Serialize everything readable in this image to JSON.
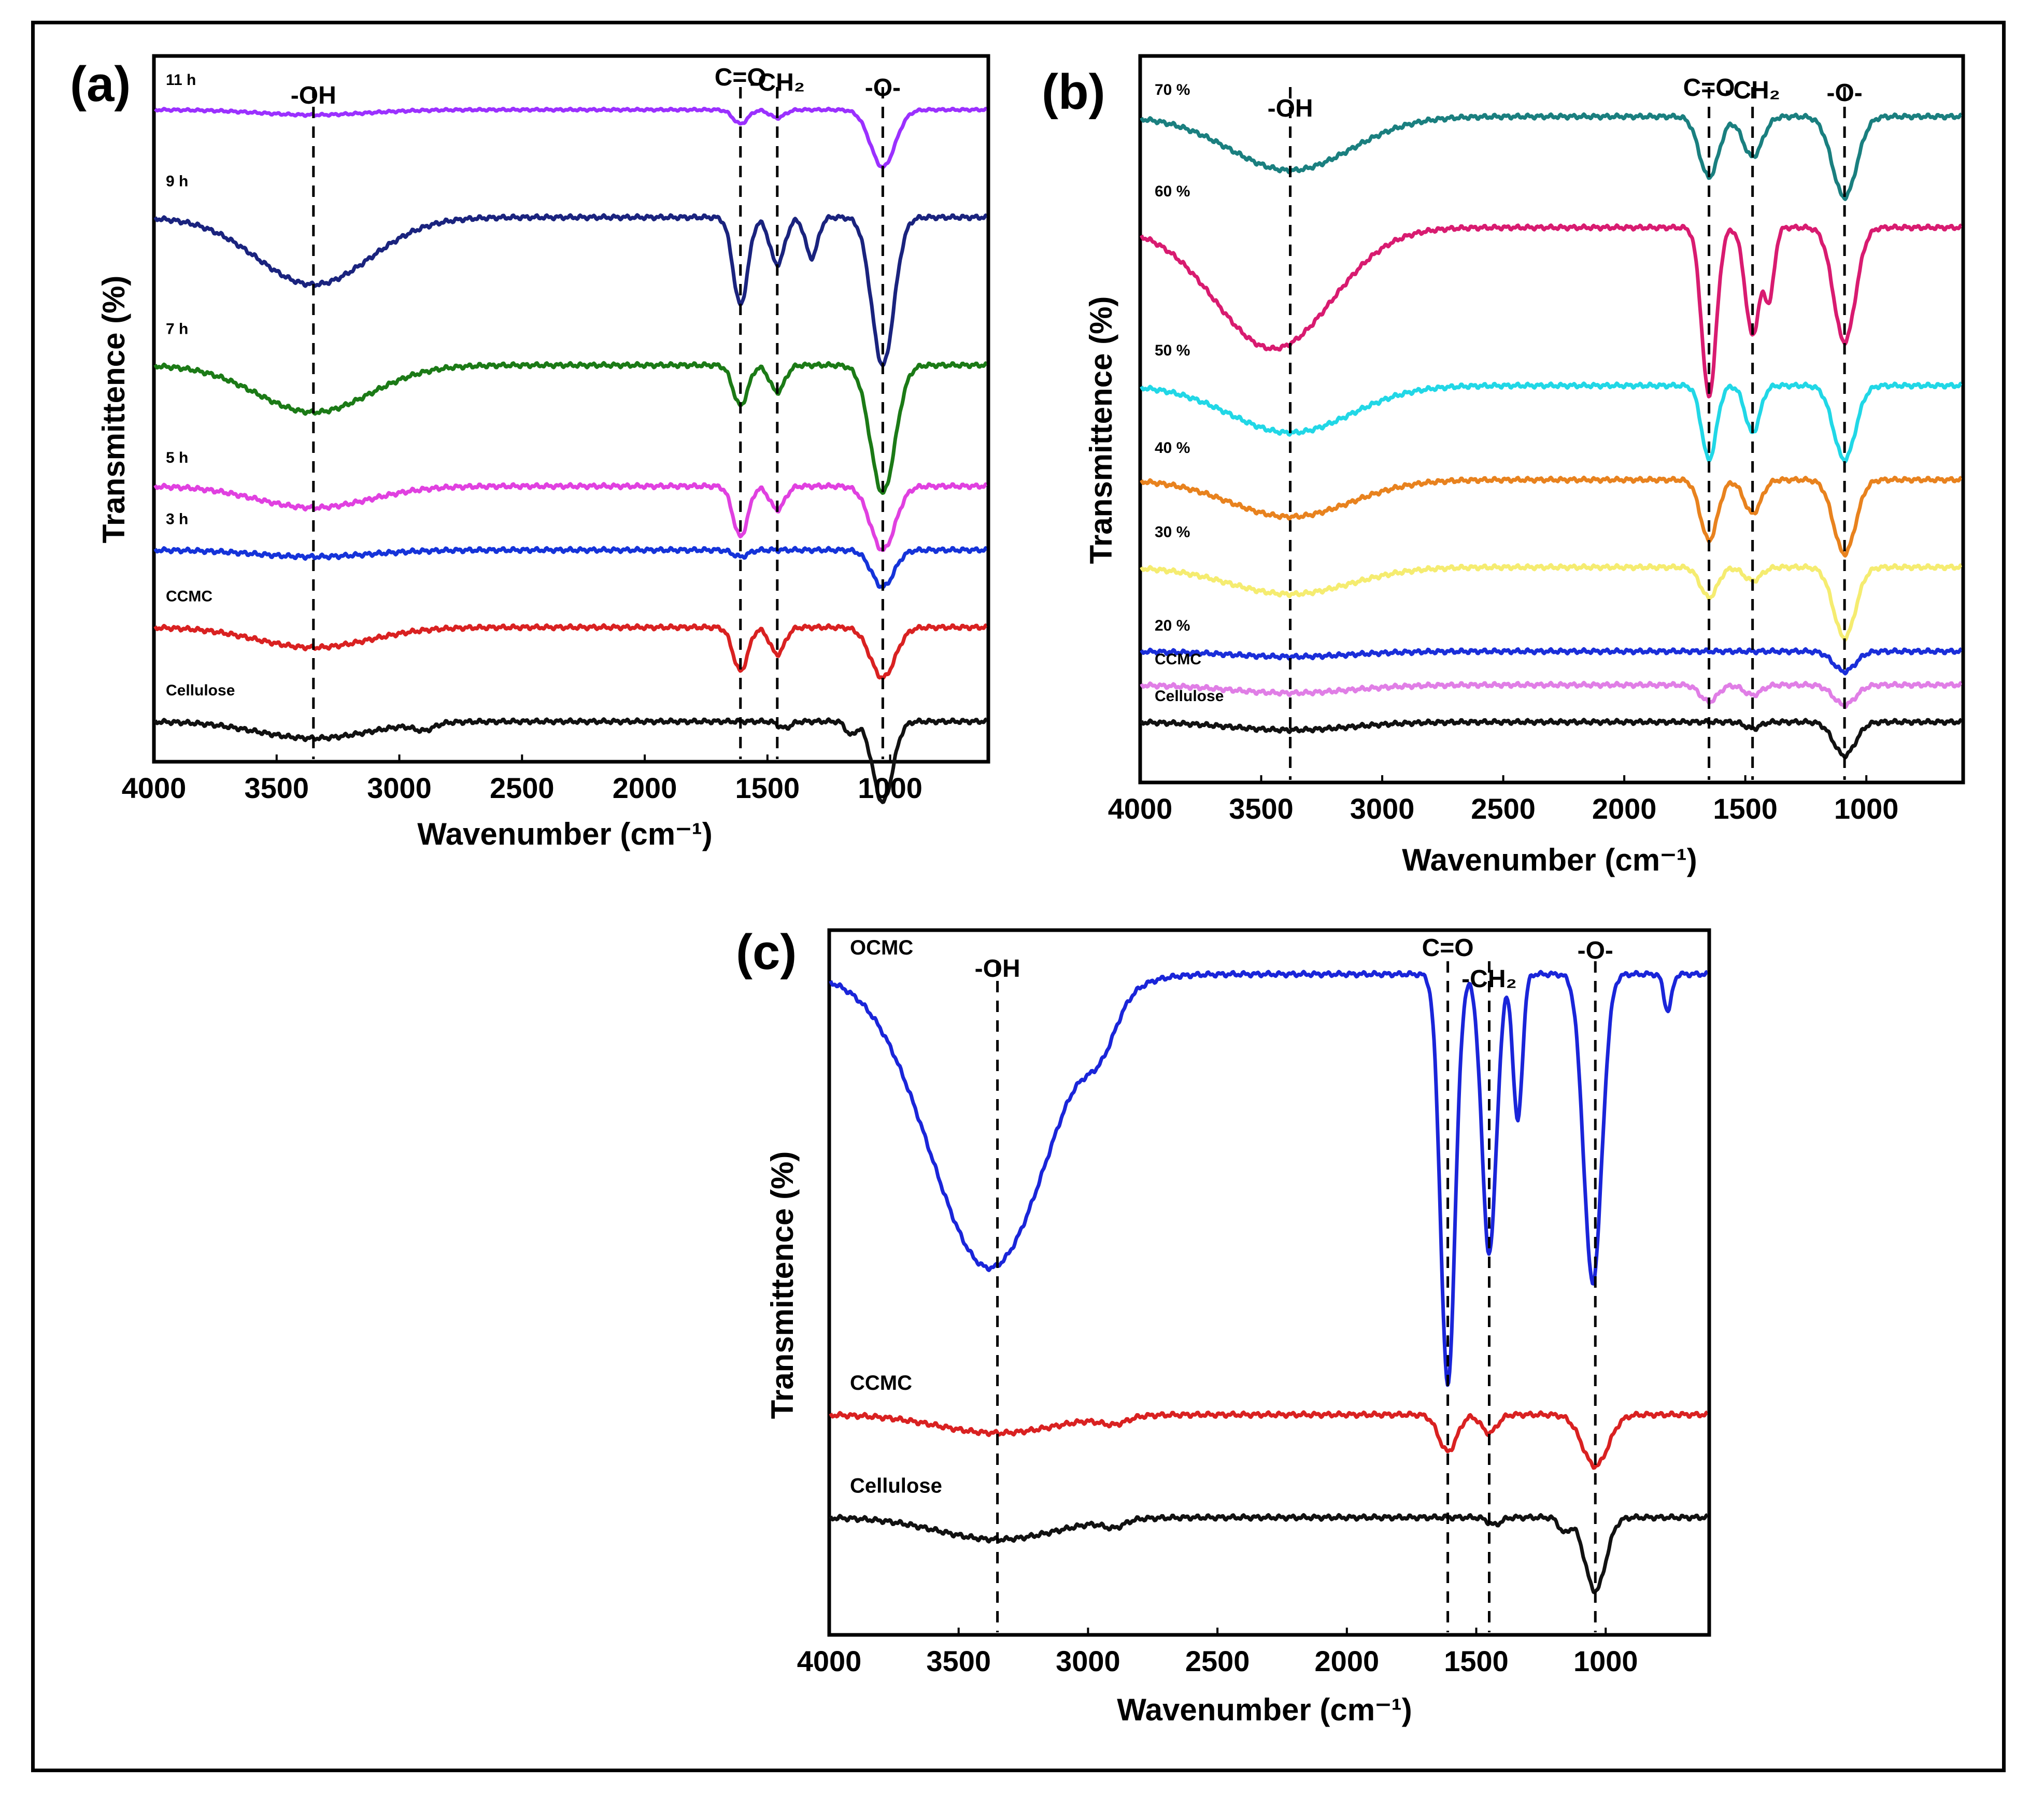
{
  "chart_data": [
    {
      "panel": "(a)",
      "type": "line",
      "xlabel": "Wavenumber (cm⁻¹)",
      "ylabel": "Transmittence (%)",
      "xlim": [
        4000,
        600
      ],
      "xticks": [
        4000,
        3500,
        3000,
        2500,
        2000,
        1500,
        1000
      ],
      "bands": [
        {
          "label": "-OH",
          "x": 3350
        },
        {
          "label": "C=O",
          "x": 1610
        },
        {
          "label": "-CH₂",
          "x": 1460
        },
        {
          "label": "-O-",
          "x": 1030
        }
      ],
      "series": [
        {
          "name": "11 h",
          "color": "#9b30ff",
          "offset": 9.7,
          "scale": 0.55,
          "peaks": [
            [
              3350,
              0.14,
              220
            ],
            [
              1610,
              0.38,
              30
            ],
            [
              1460,
              0.22,
              30
            ],
            [
              1030,
              1.55,
              50
            ]
          ]
        },
        {
          "name": "9 h",
          "color": "#1a237e",
          "offset": 8.1,
          "scale": 1,
          "peaks": [
            [
              3350,
              1.0,
              230
            ],
            [
              1610,
              1.3,
              30
            ],
            [
              1460,
              0.7,
              30
            ],
            [
              1320,
              0.6,
              25
            ],
            [
              1030,
              2.2,
              45
            ]
          ]
        },
        {
          "name": "7 h",
          "color": "#1b7a16",
          "offset": 5.9,
          "scale": 1,
          "peaks": [
            [
              3350,
              0.7,
              230
            ],
            [
              1610,
              0.6,
              30
            ],
            [
              1460,
              0.4,
              30
            ],
            [
              1030,
              1.9,
              50
            ]
          ]
        },
        {
          "name": "5 h",
          "color": "#e040e0",
          "offset": 4.1,
          "scale": 1,
          "peaks": [
            [
              3350,
              0.32,
              230
            ],
            [
              1610,
              0.75,
              30
            ],
            [
              1460,
              0.35,
              30
            ],
            [
              1030,
              0.95,
              50
            ]
          ]
        },
        {
          "name": "3 h",
          "color": "#1533d9",
          "offset": 3.15,
          "scale": 1,
          "peaks": [
            [
              3350,
              0.1,
              230
            ],
            [
              1610,
              0.1,
              30
            ],
            [
              1030,
              0.55,
              45
            ]
          ]
        },
        {
          "name": "CCMC",
          "color": "#d92121",
          "offset": 2.0,
          "scale": 1,
          "peaks": [
            [
              3350,
              0.3,
              230
            ],
            [
              1610,
              0.65,
              30
            ],
            [
              1460,
              0.4,
              30
            ],
            [
              1030,
              0.75,
              50
            ]
          ]
        },
        {
          "name": "Cellulose",
          "color": "#111111",
          "offset": 0.6,
          "scale": 1,
          "peaks": [
            [
              3350,
              0.25,
              230
            ],
            [
              2900,
              0.1,
              40
            ],
            [
              1430,
              0.1,
              25
            ],
            [
              1160,
              0.2,
              20
            ],
            [
              1030,
              1.2,
              40
            ]
          ]
        }
      ]
    },
    {
      "panel": "(b)",
      "type": "line",
      "xlabel": "Wavenumber (cm⁻¹)",
      "ylabel": "Transmittence (%)",
      "xlim": [
        4000,
        600
      ],
      "xticks": [
        4000,
        3500,
        3000,
        2500,
        2000,
        1500,
        1000
      ],
      "bands": [
        {
          "label": "-OH",
          "x": 3380
        },
        {
          "label": "C=O",
          "x": 1650
        },
        {
          "label": "-CH₂",
          "x": 1470
        },
        {
          "label": "-O-",
          "x": 1090
        }
      ],
      "series": [
        {
          "name": "70 %",
          "color": "#1a7f7f",
          "offset": 9.9,
          "scale": 1,
          "peaks": [
            [
              3380,
              0.8,
              250
            ],
            [
              1650,
              0.9,
              40
            ],
            [
              1470,
              0.6,
              40
            ],
            [
              1090,
              1.2,
              50
            ]
          ]
        },
        {
          "name": "60 %",
          "color": "#d81b70",
          "offset": 8.25,
          "scale": 1,
          "peaks": [
            [
              3450,
              1.8,
              240
            ],
            [
              1650,
              2.5,
              30
            ],
            [
              1470,
              1.6,
              30
            ],
            [
              1400,
              1.0,
              20
            ],
            [
              1090,
              1.7,
              45
            ]
          ]
        },
        {
          "name": "50 %",
          "color": "#21d7e6",
          "offset": 5.9,
          "scale": 1,
          "peaks": [
            [
              3380,
              0.7,
              250
            ],
            [
              1650,
              1.1,
              30
            ],
            [
              1470,
              0.7,
              30
            ],
            [
              1090,
              1.1,
              45
            ]
          ]
        },
        {
          "name": "40 %",
          "color": "#e8821e",
          "offset": 4.5,
          "scale": 1,
          "peaks": [
            [
              3380,
              0.55,
              250
            ],
            [
              1650,
              0.9,
              35
            ],
            [
              1470,
              0.5,
              35
            ],
            [
              1090,
              1.1,
              45
            ]
          ]
        },
        {
          "name": "30 %",
          "color": "#f5ec70",
          "offset": 3.2,
          "scale": 1,
          "peaks": [
            [
              3380,
              0.4,
              250
            ],
            [
              1650,
              0.45,
              35
            ],
            [
              1470,
              0.2,
              35
            ],
            [
              1090,
              1.05,
              45
            ]
          ]
        },
        {
          "name": "20 %",
          "color": "#1a2ed9",
          "offset": 1.95,
          "scale": 1,
          "peaks": [
            [
              3380,
              0.08,
              250
            ],
            [
              1090,
              0.3,
              45
            ]
          ]
        },
        {
          "name": "CCMC",
          "color": "#e07ee6",
          "offset": 1.45,
          "scale": 1,
          "peaks": [
            [
              3380,
              0.12,
              250
            ],
            [
              1650,
              0.25,
              35
            ],
            [
              1470,
              0.15,
              35
            ],
            [
              1090,
              0.3,
              45
            ]
          ]
        },
        {
          "name": "Cellulose",
          "color": "#111111",
          "offset": 0.9,
          "scale": 1,
          "peaks": [
            [
              3380,
              0.12,
              250
            ],
            [
              1470,
              0.1,
              30
            ],
            [
              1090,
              0.5,
              45
            ]
          ]
        }
      ],
      "extra_labels": [
        "CCMC",
        "Cellulose",
        "Cellulose"
      ]
    },
    {
      "panel": "(c)",
      "type": "line",
      "xlabel": "Wavenumber (cm⁻¹)",
      "ylabel": "Transmittence (%)",
      "xlim": [
        4000,
        600
      ],
      "xticks": [
        4000,
        3500,
        3000,
        2500,
        2000,
        1500,
        1000
      ],
      "bands": [
        {
          "label": "-OH",
          "x": 3350
        },
        {
          "label": "C=O",
          "x": 1610
        },
        {
          "label": "-CH₂",
          "x": 1450
        },
        {
          "label": "-O-",
          "x": 1040
        }
      ],
      "series": [
        {
          "name": "OCMC",
          "color": "#1a25d9",
          "offset": 9.0,
          "scale": 1,
          "peaks": [
            [
              3380,
              4.0,
              230
            ],
            [
              2950,
              0.5,
              60
            ],
            [
              1610,
              5.6,
              28
            ],
            [
              1450,
              3.8,
              28
            ],
            [
              1340,
              2.0,
              18
            ],
            [
              1050,
              4.2,
              35
            ],
            [
              760,
              0.5,
              15
            ]
          ]
        },
        {
          "name": "CCMC",
          "color": "#d92121",
          "offset": 3.0,
          "scale": 1,
          "peaks": [
            [
              3350,
              0.25,
              230
            ],
            [
              2900,
              0.1,
              50
            ],
            [
              1610,
              0.5,
              35
            ],
            [
              1450,
              0.25,
              30
            ],
            [
              1040,
              0.7,
              50
            ]
          ]
        },
        {
          "name": "Cellulose",
          "color": "#111111",
          "offset": 1.6,
          "scale": 1,
          "peaks": [
            [
              3350,
              0.3,
              230
            ],
            [
              2900,
              0.1,
              40
            ],
            [
              1430,
              0.1,
              25
            ],
            [
              1160,
              0.2,
              20
            ],
            [
              1040,
              1.0,
              40
            ]
          ]
        }
      ]
    }
  ]
}
